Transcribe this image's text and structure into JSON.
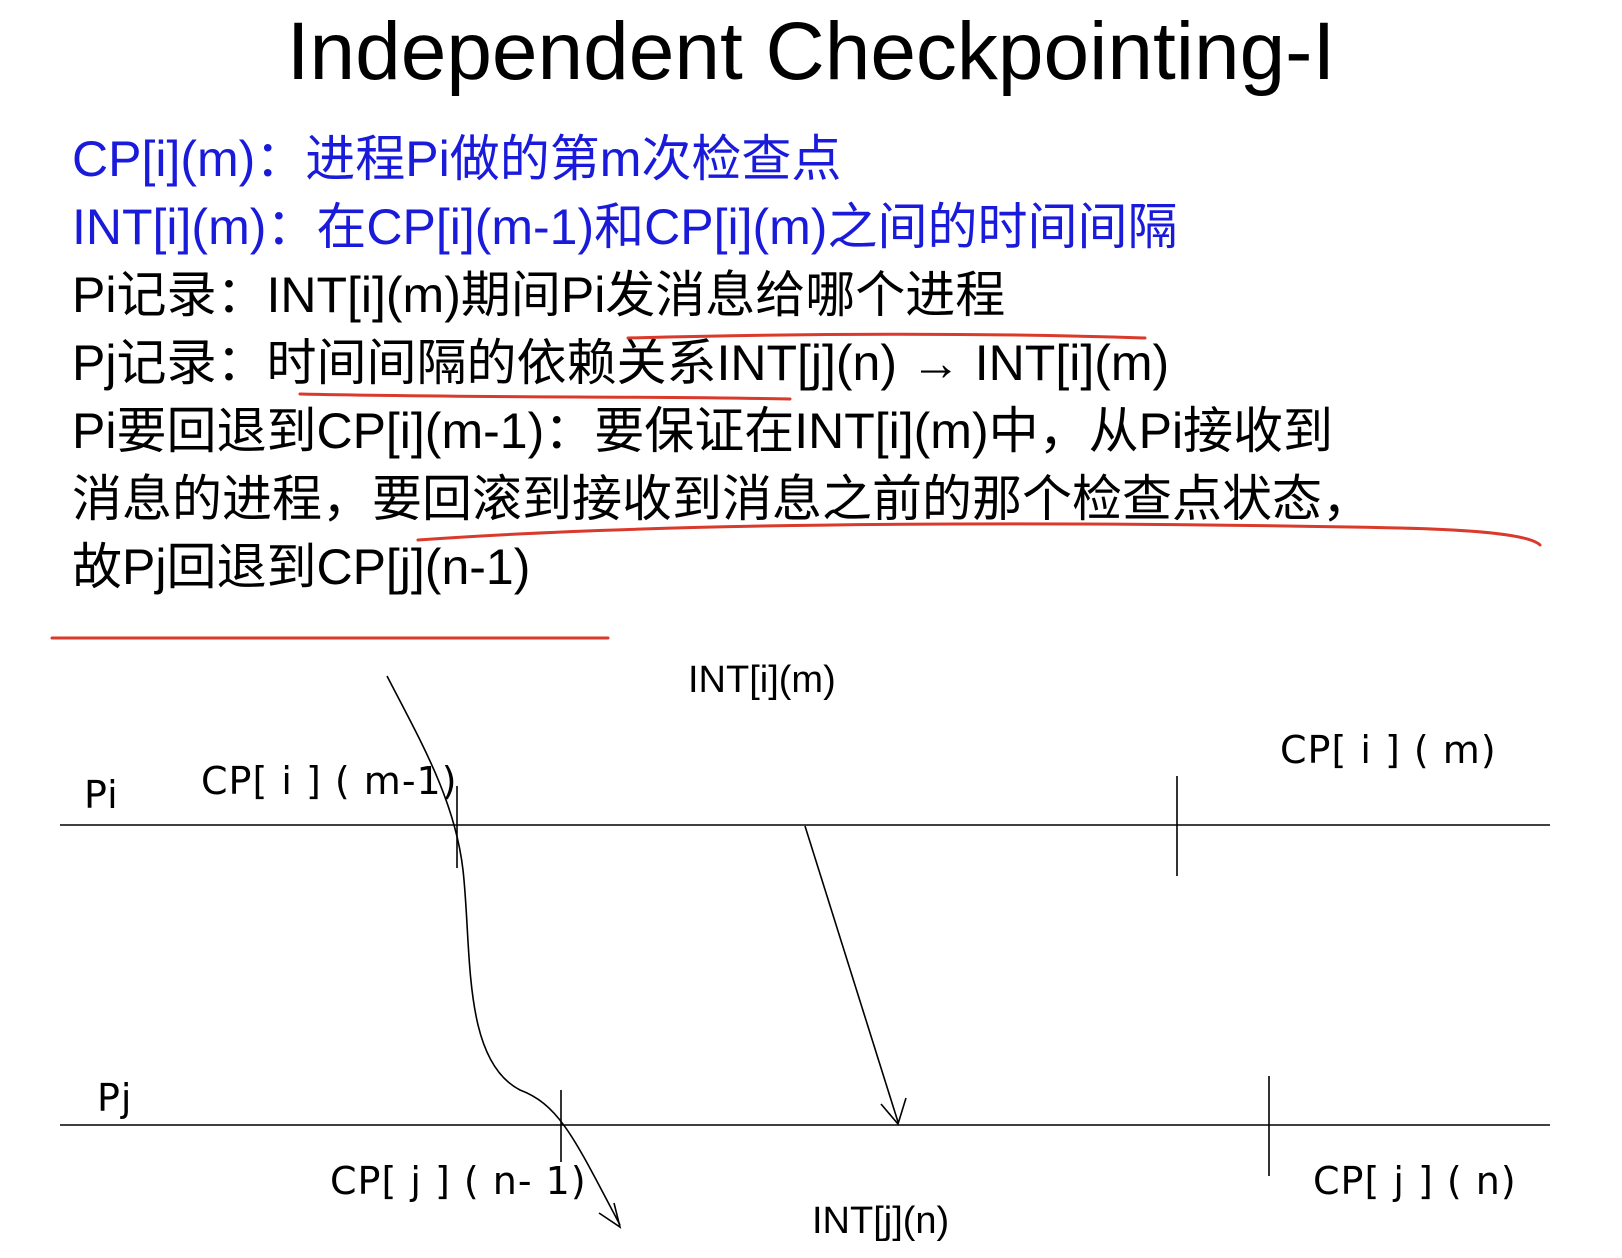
{
  "title": "Independent Checkpointing-I",
  "lines": [
    {
      "text": "CP[i](m)：进程Pi做的第m次检查点",
      "color": "#1a1adb"
    },
    {
      "text": "INT[i](m)：在CP[i](m-1)和CP[i](m)之间的时间间隔",
      "color": "#1a1adb"
    },
    {
      "text": "Pi记录：INT[i](m)期间Pi发消息给哪个进程",
      "color": "#000000"
    },
    {
      "text": "Pj记录：时间间隔的依赖关系INT[j](n) → INT[i](m)",
      "color": "#000000"
    },
    {
      "text": "Pi要回退到CP[i](m-1)：要保证在INT[i](m)中，从Pi接收到",
      "color": "#000000"
    },
    {
      "text": "消息的进程，要回滚到接收到消息之前的那个检查点状态，",
      "color": "#000000"
    },
    {
      "text": "故Pj回退到CP[j](n-1)",
      "color": "#000000"
    }
  ],
  "diagram": {
    "process_i": "Pi",
    "process_j": "Pj",
    "cp_i_m1": "CP[ i ] ( m-1)",
    "cp_i_m": "CP[ i ] ( m)",
    "cp_j_n1": "CP[ j ] ( n- 1)",
    "cp_j_n": "CP[ j ] ( n)",
    "int_i_m": "INT[i](m)",
    "int_j_n": "INT[j](n)"
  },
  "colors": {
    "text_blue": "#1a1adb",
    "annotation_red": "#d93a2b"
  }
}
